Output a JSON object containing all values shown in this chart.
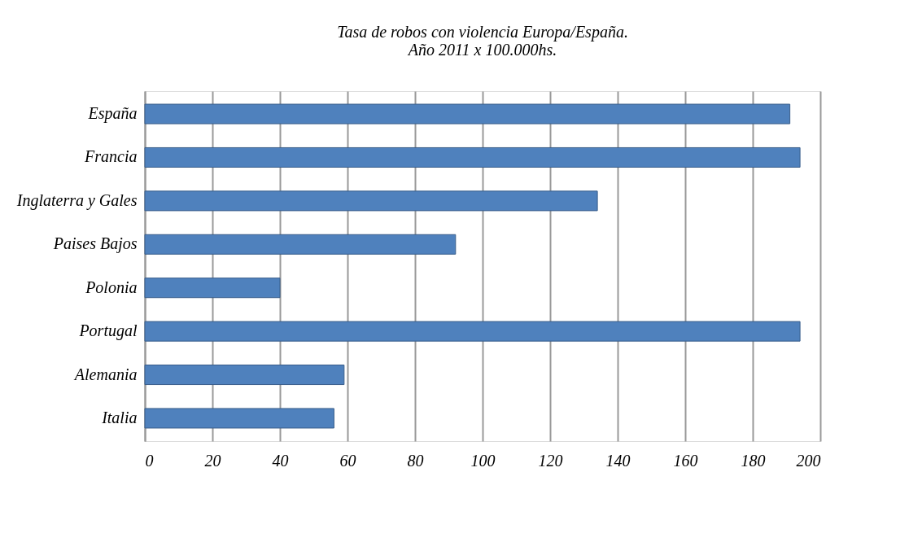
{
  "chart_data": {
    "type": "bar",
    "orientation": "horizontal",
    "title": [
      "Tasa de robos con violencia Europa/España.",
      "Año 2011 x 100.000hs."
    ],
    "categories": [
      "España",
      "Francia",
      "Inglaterra y Gales",
      "Paises Bajos",
      "Polonia",
      "Portugal",
      "Alemania",
      "Italia"
    ],
    "values": [
      191,
      194,
      134,
      92,
      40,
      194,
      59,
      56
    ],
    "color": "#4f81bd",
    "xlim": [
      0,
      200
    ],
    "xticks": [
      0,
      20,
      40,
      60,
      80,
      100,
      120,
      140,
      160,
      180,
      200
    ],
    "grid": "x"
  }
}
